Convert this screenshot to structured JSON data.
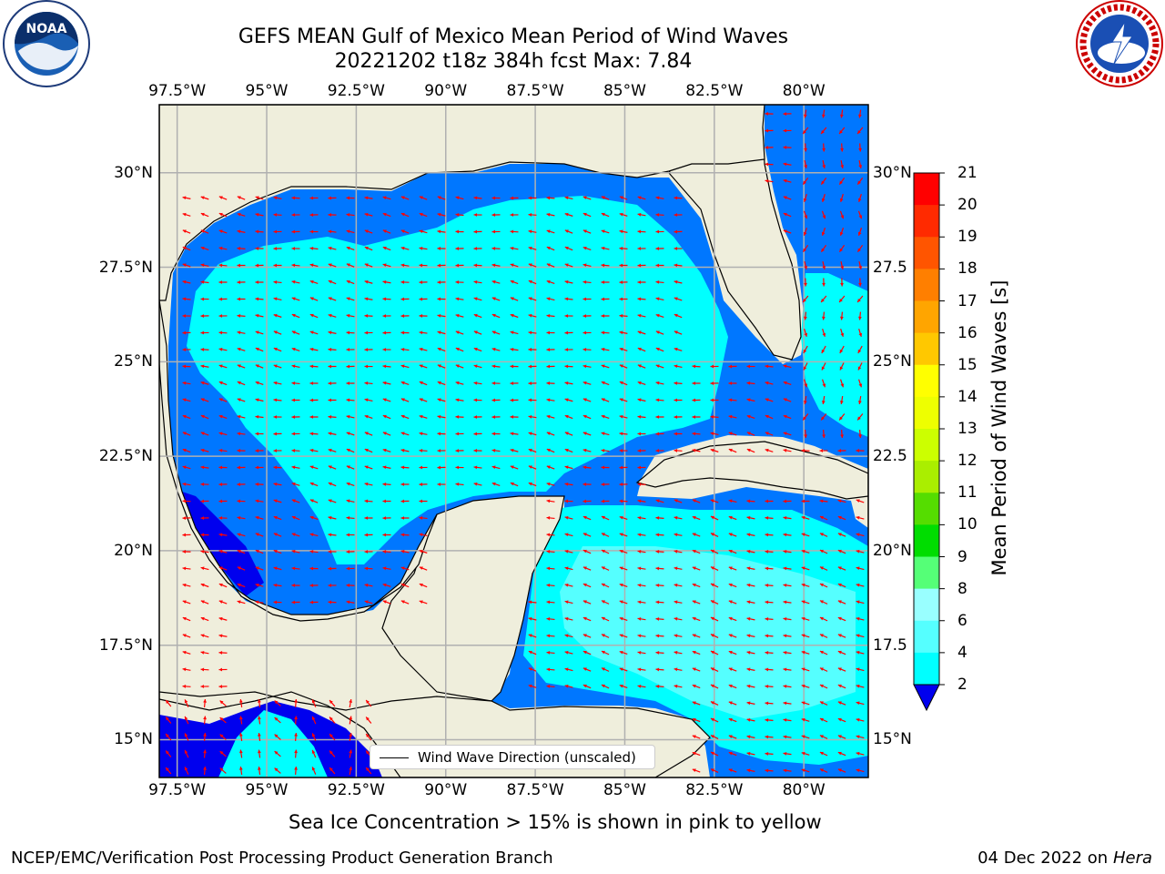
{
  "title_line1": "GEFS MEAN Gulf of Mexico Mean Period of Wind Waves",
  "title_line2": "20221202 t18z 384h fcst   Max: 7.84",
  "lon_ticks": [
    "97.5°W",
    "95°W",
    "92.5°W",
    "90°W",
    "87.5°W",
    "85°W",
    "82.5°W",
    "80°W"
  ],
  "lat_ticks_left": [
    "30°N",
    "27.5°N",
    "25°N",
    "22.5°N",
    "20°N",
    "17.5°N",
    "15°N"
  ],
  "lat_ticks_right": [
    "30°N",
    "27.5",
    "25°N",
    "22.5",
    "20°N",
    "17.5",
    "15°N"
  ],
  "map_extent": {
    "lon": [
      -98,
      -78.2
    ],
    "lat": [
      14,
      31.8
    ]
  },
  "colorbar": {
    "title": "Mean Period of Wind Waves [s]",
    "labels": [
      "21",
      "20",
      "19",
      "18",
      "17",
      "16",
      "15",
      "14",
      "13",
      "12",
      "11",
      "10",
      "9",
      "8",
      "6",
      "4",
      "2"
    ],
    "colors": [
      "#ff0000",
      "#ff2a00",
      "#ff5500",
      "#ff7f00",
      "#ffa500",
      "#ffc800",
      "#ffff00",
      "#eeff00",
      "#ccff00",
      "#aaee00",
      "#55dd00",
      "#00dd00",
      "#55ff77",
      "#99ffff",
      "#55ffff",
      "#00ffff",
      "#0077ff"
    ],
    "under_color": "#0000ee"
  },
  "legend_label": "Wind Wave Direction (unscaled)",
  "ice_note": "Sea Ice Concentration > 15% is shown in pink to yellow",
  "footer_left": "NCEP/EMC/Verification Post Processing Product Generation Branch",
  "footer_date": "04 Dec 2022 on",
  "footer_host": "Hera",
  "colors": {
    "land": "#efeedc",
    "arrow": "#ff0000",
    "grid": "#b0b0b0",
    "coast": "#000000",
    "sea_low": "#0077ff",
    "sea_mid": "#00ffff",
    "sea_high": "#55ffff",
    "sea_deep": "#0000ee"
  }
}
